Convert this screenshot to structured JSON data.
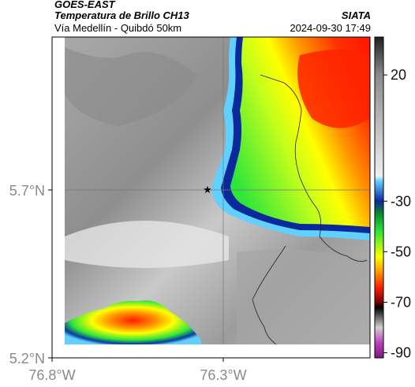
{
  "header": {
    "satellite": "GOES-EAST",
    "product": "Temperatura de Brillo CH13",
    "organization": "SIATA",
    "region": "Vía Medellín - Quibdó 50km",
    "timestamp": "2024-09-30 17:49"
  },
  "chart_data": {
    "type": "heatmap",
    "title": "Temperatura de Brillo CH13",
    "xlabel": "",
    "ylabel": "",
    "xlim": [
      -76.8,
      -76.3
    ],
    "ylim": [
      5.2,
      5.7
    ],
    "x_ticks": [
      {
        "value": -76.8,
        "label": "76.8°W"
      },
      {
        "value": -76.3,
        "label": "76.3°W"
      }
    ],
    "y_ticks": [
      {
        "value": 5.7,
        "label": "5.7°N"
      },
      {
        "value": 5.2,
        "label": "5.2°N"
      }
    ],
    "grid": true,
    "marker": {
      "lon": -76.35,
      "lat": 5.7,
      "symbol": "★"
    },
    "colorbar": {
      "orientation": "vertical",
      "location": "right",
      "ticks": [
        20,
        -30,
        -50,
        -70,
        -90
      ],
      "stops": [
        {
          "value": 35,
          "color": "#202020"
        },
        {
          "value": 20,
          "color": "#8a8a8a"
        },
        {
          "value": -20,
          "color": "#f0f0f0"
        },
        {
          "value": -22,
          "color": "#5fd0ff"
        },
        {
          "value": -30,
          "color": "#0a2a9c"
        },
        {
          "value": -35,
          "color": "#0a8a2e"
        },
        {
          "value": -42,
          "color": "#2ee63a"
        },
        {
          "value": -52,
          "color": "#ffff00"
        },
        {
          "value": -58,
          "color": "#ff9900"
        },
        {
          "value": -64,
          "color": "#ff2200"
        },
        {
          "value": -70,
          "color": "#7a0000"
        },
        {
          "value": -72,
          "color": "#000000"
        },
        {
          "value": -80,
          "color": "#d0d0d0"
        },
        {
          "value": -86,
          "color": "#c040c0"
        },
        {
          "value": -92,
          "color": "#7a1a7a"
        }
      ]
    },
    "regions": [
      {
        "name": "cloud-free-area",
        "category": "warm",
        "approx_temp_c": 15,
        "color": "#9a9a9a"
      },
      {
        "name": "convective-cloud-east",
        "category": "cold",
        "approx_temp_c": -60,
        "color": "#ff3300"
      },
      {
        "name": "convective-cell-southwest",
        "category": "cold",
        "approx_temp_c": -55,
        "color": "#ffcc00"
      }
    ]
  }
}
